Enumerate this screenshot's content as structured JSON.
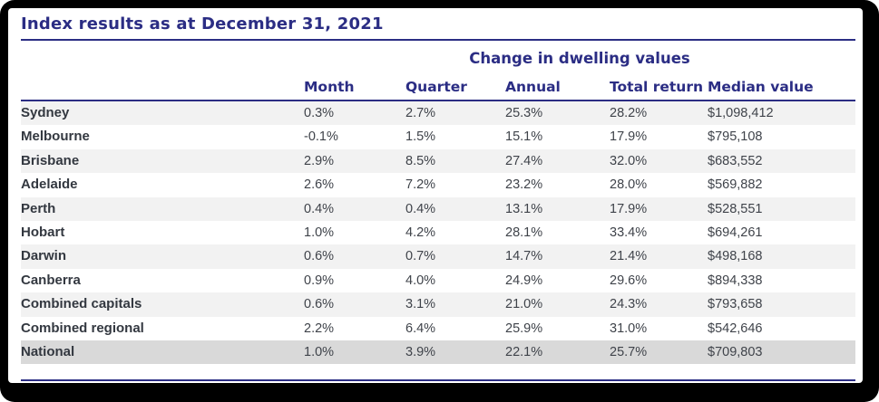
{
  "chart_data": {
    "type": "table",
    "title": "Index results as at December 31, 2021",
    "group_header": "Change in dwelling values",
    "columns": [
      "Month",
      "Quarter",
      "Annual",
      "Total return",
      "Median value"
    ],
    "rows": [
      {
        "label": "Sydney",
        "values": [
          "0.3%",
          "2.7%",
          "25.3%",
          "28.2%",
          "$1,098,412"
        ],
        "emphasis": false
      },
      {
        "label": "Melbourne",
        "values": [
          "-0.1%",
          "1.5%",
          "15.1%",
          "17.9%",
          "$795,108"
        ],
        "emphasis": false
      },
      {
        "label": "Brisbane",
        "values": [
          "2.9%",
          "8.5%",
          "27.4%",
          "32.0%",
          "$683,552"
        ],
        "emphasis": false
      },
      {
        "label": "Adelaide",
        "values": [
          "2.6%",
          "7.2%",
          "23.2%",
          "28.0%",
          "$569,882"
        ],
        "emphasis": false
      },
      {
        "label": "Perth",
        "values": [
          "0.4%",
          "0.4%",
          "13.1%",
          "17.9%",
          "$528,551"
        ],
        "emphasis": false
      },
      {
        "label": "Hobart",
        "values": [
          "1.0%",
          "4.2%",
          "28.1%",
          "33.4%",
          "$694,261"
        ],
        "emphasis": false
      },
      {
        "label": "Darwin",
        "values": [
          "0.6%",
          "0.7%",
          "14.7%",
          "21.4%",
          "$498,168"
        ],
        "emphasis": false
      },
      {
        "label": "Canberra",
        "values": [
          "0.9%",
          "4.0%",
          "24.9%",
          "29.6%",
          "$894,338"
        ],
        "emphasis": false
      },
      {
        "label": "Combined capitals",
        "values": [
          "0.6%",
          "3.1%",
          "21.0%",
          "24.3%",
          "$793,658"
        ],
        "emphasis": false
      },
      {
        "label": "Combined regional",
        "values": [
          "2.2%",
          "6.4%",
          "25.9%",
          "31.0%",
          "$542,646"
        ],
        "emphasis": false
      },
      {
        "label": "National",
        "values": [
          "1.0%",
          "3.9%",
          "22.1%",
          "25.7%",
          "$709,803"
        ],
        "emphasis": true
      }
    ]
  },
  "colors": {
    "accent_navy": "#2b2d84",
    "row_stripe": "#f2f2f2",
    "total_row_bg": "#d9d9d9",
    "label_text": "#333840",
    "value_text": "#3f434a",
    "frame": "#000000"
  }
}
